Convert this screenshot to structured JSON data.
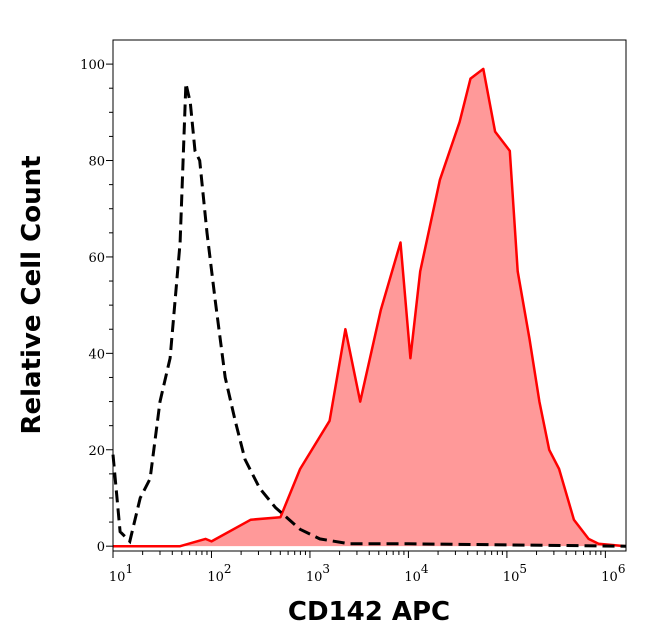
{
  "chart_data": {
    "type": "area",
    "title": "",
    "xlabel": "CD142 APC",
    "ylabel": "Relative Cell Count",
    "x_scale": "log",
    "xlim": [
      10,
      1620000
    ],
    "ylim": [
      -1,
      105
    ],
    "x_ticks": [
      {
        "base": "10",
        "exp": "1",
        "value": 10
      },
      {
        "base": "10",
        "exp": "2",
        "value": 100
      },
      {
        "base": "10",
        "exp": "3",
        "value": 1000
      },
      {
        "base": "10",
        "exp": "4",
        "value": 10000
      },
      {
        "base": "10",
        "exp": "5",
        "value": 100000
      },
      {
        "base": "10",
        "exp": "6",
        "value": 1000000
      }
    ],
    "y_ticks": [
      "0",
      "20",
      "40",
      "60",
      "80",
      "100"
    ],
    "grid": false,
    "series": [
      {
        "style": "filled-solid",
        "color": "#ff0000",
        "fill": "#ff9999",
        "x": [
          10,
          48,
          87,
          100,
          251,
          501,
          794,
          1585,
          2291,
          3236,
          5248,
          8318,
          10471,
          13183,
          20893,
          33113,
          42658,
          57544,
          75858,
          107152,
          128825,
          169824,
          213796,
          269153,
          338844,
          478630,
          676083,
          851138,
          1620000
        ],
        "y": [
          0,
          0,
          1.5,
          1,
          5.5,
          6,
          16,
          26,
          45,
          30,
          49,
          63,
          39,
          57,
          76,
          88,
          97,
          99,
          86,
          82,
          57,
          43,
          30,
          20,
          16,
          5.5,
          1.5,
          0.5,
          0
        ]
      },
      {
        "style": "dashed",
        "color": "#000000",
        "x": [
          10,
          11.8,
          14.8,
          18.9,
          23.8,
          30,
          38,
          48,
          55,
          61,
          68,
          76,
          90,
          109,
          138,
          174,
          219,
          309,
          447,
          794,
          1259,
          2512,
          10000,
          1620000
        ],
        "y": [
          19,
          3,
          1,
          10,
          14,
          30,
          39,
          63,
          96,
          92,
          82,
          80,
          65,
          51,
          35,
          26,
          18,
          12,
          8,
          3.5,
          1.5,
          0.5,
          0.5,
          0
        ]
      }
    ]
  }
}
